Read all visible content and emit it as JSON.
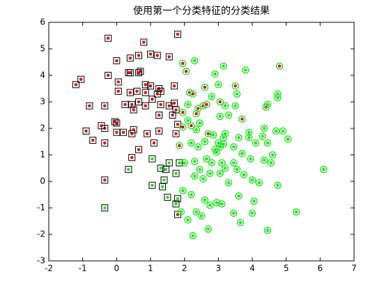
{
  "chart_data": {
    "type": "scatter",
    "title": "使用第一个分类特征的分类结果",
    "xlim": [
      -2,
      7
    ],
    "ylim": [
      -3,
      6
    ],
    "xticks": [
      -2,
      -1,
      0,
      1,
      2,
      3,
      4,
      5,
      6,
      7
    ],
    "yticks": [
      -3,
      -2,
      -1,
      0,
      1,
      2,
      3,
      4,
      5,
      6
    ],
    "grid": false,
    "series": [
      {
        "color": "#e00000",
        "marker": "square",
        "edge_color": "#000000",
        "x": [
          -0.25,
          1.8,
          0.8,
          0.65,
          1.0,
          1.2,
          1.55,
          0.0,
          0.4,
          -0.25,
          0.4,
          0.7,
          0.65,
          -1.2,
          -1.05,
          0.05,
          0.35,
          0.85,
          1.0,
          1.25,
          1.7,
          0.05,
          0.4,
          0.6,
          0.85,
          1.3,
          1.2,
          -0.8,
          -0.35,
          0.25,
          0.45,
          0.65,
          0.85,
          1.05,
          1.3,
          1.55,
          1.7,
          1.75,
          0.5,
          1.25,
          1.65,
          -0.05,
          0.0,
          -0.35,
          -0.45,
          -0.9,
          0.0,
          0.2,
          0.45,
          0.5,
          0.9,
          1.25,
          1.75,
          1.8,
          -0.7,
          -0.35,
          0.65,
          0.45,
          1.1,
          -0.35,
          1.8
        ],
        "y": [
          5.4,
          5.55,
          5.25,
          4.75,
          4.8,
          4.75,
          4.7,
          4.55,
          4.65,
          4.0,
          4.1,
          4.15,
          4.1,
          3.65,
          3.85,
          3.75,
          4.1,
          3.65,
          3.6,
          3.5,
          3.6,
          3.4,
          3.35,
          3.4,
          3.35,
          3.4,
          3.3,
          2.85,
          2.85,
          2.9,
          2.9,
          3.0,
          2.85,
          3.1,
          2.9,
          2.85,
          2.95,
          2.7,
          2.7,
          2.5,
          2.5,
          2.25,
          2.2,
          2.0,
          2.1,
          1.9,
          1.85,
          1.85,
          1.8,
          1.95,
          1.8,
          1.9,
          1.8,
          2.15,
          1.55,
          1.45,
          1.2,
          0.9,
          1.45,
          0.05,
          -1.25
        ]
      },
      {
        "color": "#00ee00",
        "marker": "square",
        "edge_color": "#000000",
        "x": [
          0.35,
          -0.35,
          1.05,
          1.3,
          1.55,
          1.45,
          1.85,
          1.4,
          1.05,
          1.35,
          1.5,
          1.8,
          1.75,
          1.75
        ],
        "y": [
          0.45,
          -1.0,
          0.85,
          0.5,
          0.7,
          0.45,
          0.7,
          0.05,
          -0.15,
          -0.2,
          -0.6,
          -0.65,
          -0.85,
          0.3
        ]
      },
      {
        "color": "#e00000",
        "marker": "circle",
        "edge_color": "#33dd33",
        "x": [
          1.95,
          2.05,
          2.15,
          2.25,
          2.6,
          3.5,
          2.4,
          2.55,
          2.65,
          1.95,
          2.35,
          2.2,
          1.95,
          2.7,
          3.7,
          4.4,
          4.8,
          1.85,
          3.05
        ],
        "y": [
          4.45,
          4.15,
          3.35,
          3.3,
          3.55,
          3.6,
          2.75,
          2.85,
          2.9,
          2.6,
          2.55,
          2.1,
          2.05,
          1.8,
          2.35,
          2.8,
          4.35,
          1.35,
          3.0
        ]
      },
      {
        "color": "#00ee00",
        "marker": "circle",
        "edge_color": "#33dd33",
        "x": [
          2.3,
          2.9,
          3.15,
          3.0,
          3.8,
          4.75,
          4.75,
          4.45,
          3.55,
          2.8,
          3.2,
          3.5,
          2.1,
          2.1,
          2.45,
          3.05,
          3.3,
          2.35,
          2.85,
          3.15,
          3.2,
          3.6,
          3.9,
          3.9,
          4.3,
          4.35,
          4.7,
          4.9,
          5.05,
          2.2,
          2.4,
          2.6,
          2.9,
          3.0,
          3.05,
          2.95,
          3.15,
          3.45,
          3.7,
          4.1,
          4.45,
          4.6,
          2.0,
          2.3,
          2.45,
          2.65,
          2.8,
          3.1,
          3.2,
          3.45,
          3.95,
          4.35,
          4.55,
          2.3,
          2.55,
          2.75,
          3.05,
          3.3,
          3.55,
          3.75,
          4.0,
          4.2,
          4.75,
          6.1,
          1.95,
          2.2,
          2.6,
          2.75,
          2.95,
          3.1,
          3.6,
          4.05,
          1.9,
          2.35,
          2.5,
          3.45,
          4.0,
          5.3,
          2.1,
          2.7,
          3.65,
          4.45,
          2.25
        ],
        "y": [
          4.55,
          4.05,
          4.35,
          3.65,
          4.2,
          3.3,
          3.15,
          2.9,
          3.3,
          3.2,
          2.85,
          2.85,
          2.9,
          2.3,
          2.2,
          2.45,
          2.5,
          1.95,
          1.75,
          1.65,
          1.8,
          1.65,
          1.65,
          1.85,
          1.7,
          2.0,
          1.9,
          1.9,
          1.6,
          1.45,
          1.3,
          1.5,
          1.2,
          1.45,
          1.3,
          1.1,
          1.4,
          1.3,
          1.05,
          1.45,
          1.45,
          1.0,
          0.7,
          0.75,
          0.45,
          0.85,
          0.7,
          0.7,
          0.5,
          0.7,
          0.85,
          0.8,
          0.7,
          0.2,
          0.1,
          0.3,
          0.3,
          -0.05,
          0.45,
          0.25,
          0.05,
          -0.05,
          -0.15,
          0.45,
          -0.35,
          -0.5,
          -0.7,
          -0.9,
          -0.8,
          -0.85,
          -0.55,
          -0.75,
          -1.15,
          -1.15,
          -1.3,
          -1.2,
          -1.2,
          -1.15,
          -1.45,
          -1.8,
          -1.55,
          -1.85,
          -2.05
        ]
      }
    ]
  }
}
